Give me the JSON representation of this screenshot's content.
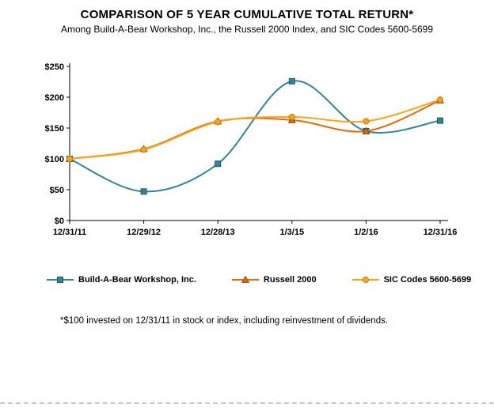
{
  "chart_data": {
    "type": "line",
    "title": "COMPARISON OF 5 YEAR CUMULATIVE TOTAL RETURN*",
    "subtitle": "Among Build-A-Bear Workshop, Inc., the Russell 2000 Index, and SIC Codes 5600-5699",
    "footnote": "*$100 invested on 12/31/11 in stock or index, including reinvestment of dividends.",
    "categories": [
      "12/31/11",
      "12/29/12",
      "12/28/13",
      "1/3/15",
      "1/2/16",
      "12/31/16"
    ],
    "series": [
      {
        "name": "Build-A-Bear Workshop, Inc.",
        "marker": "square",
        "color": "#31849B",
        "marker_edge": "#1F5967",
        "values": [
          100,
          47,
          92,
          226,
          145,
          162
        ]
      },
      {
        "name": "Russell 2000",
        "marker": "triangle",
        "color": "#E36C09",
        "marker_edge": "#8A4506",
        "values": [
          100,
          116,
          161,
          163,
          145,
          195
        ]
      },
      {
        "name": "SIC Codes 5600-5699",
        "marker": "circle",
        "color": "#FAA519",
        "marker_edge": "#C77F10",
        "values": [
          100,
          115,
          160,
          168,
          161,
          196
        ]
      }
    ],
    "ylim": [
      0,
      250
    ],
    "yticks": [
      0,
      50,
      100,
      150,
      200,
      250
    ],
    "ytick_labels": [
      "$0",
      "$50",
      "$100",
      "$150",
      "$200",
      "$250"
    ],
    "grid": false,
    "legend_position": "bottom",
    "axis_color": "#000000",
    "line_width": 2
  }
}
